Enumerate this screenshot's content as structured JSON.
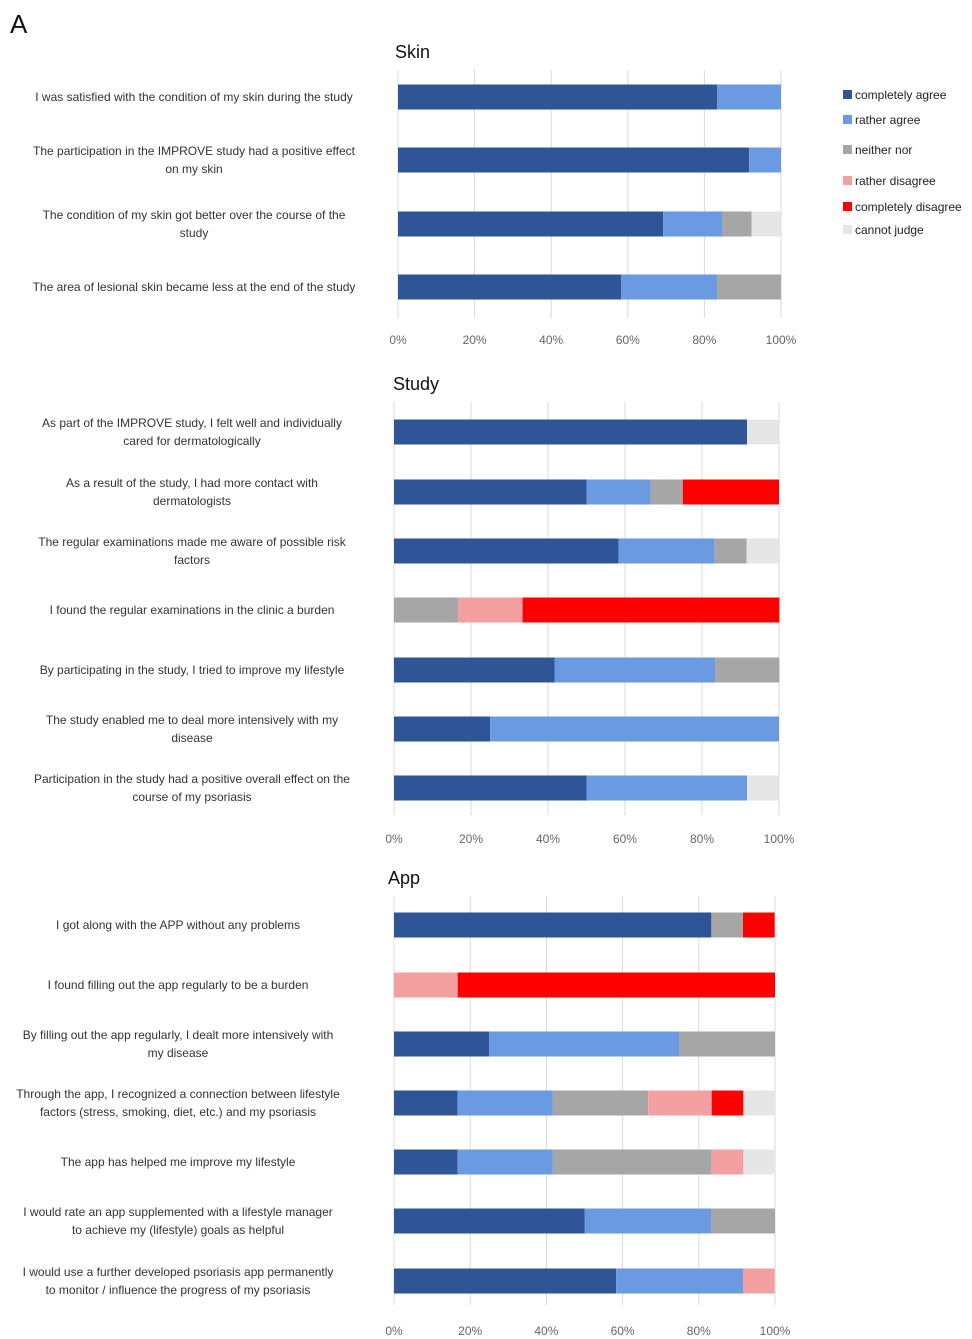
{
  "panel_label": "A",
  "legend": [
    {
      "key": "completely_agree",
      "label": "completely agree",
      "color": "#2f5597"
    },
    {
      "key": "rather_agree",
      "label": "rather agree",
      "color": "#6a9ae2"
    },
    {
      "key": "neither_nor",
      "label": "neither nor",
      "color": "#a6a6a6"
    },
    {
      "key": "rather_disagree",
      "label": "rather disagree",
      "color": "#f4a0a0"
    },
    {
      "key": "completely_disagree",
      "label": "completely disagree",
      "color": "#ff0000"
    },
    {
      "key": "cannot_judge",
      "label": "cannot judge",
      "color": "#e6e6e6"
    }
  ],
  "chart_data": [
    {
      "type": "bar",
      "orientation": "horizontal",
      "stacked": "percent",
      "title": "Skin",
      "xlim": [
        0,
        100
      ],
      "xticks": [
        "0%",
        "20%",
        "40%",
        "60%",
        "80%",
        "100%"
      ],
      "categories": [
        [
          "I was satisfied with the condition of my skin during the study"
        ],
        [
          "The participation in the IMPROVE study had a positive effect",
          "on my skin"
        ],
        [
          "The condition of my skin got better over the course of the",
          "study"
        ],
        [
          "The area of lesional skin became less at the end of the study"
        ]
      ],
      "series": [
        {
          "name": "completely agree",
          "values": [
            83.3,
            91.7,
            69.2,
            58.3
          ]
        },
        {
          "name": "rather agree",
          "values": [
            16.7,
            8.3,
            15.4,
            25.0
          ]
        },
        {
          "name": "neither nor",
          "values": [
            0,
            0,
            7.7,
            16.7
          ]
        },
        {
          "name": "rather disagree",
          "values": [
            0,
            0,
            0,
            0
          ]
        },
        {
          "name": "completely disagree",
          "values": [
            0,
            0,
            0,
            0
          ]
        },
        {
          "name": "cannot judge",
          "values": [
            0,
            0,
            7.7,
            0
          ]
        }
      ]
    },
    {
      "type": "bar",
      "orientation": "horizontal",
      "stacked": "percent",
      "title": "Study",
      "xlim": [
        0,
        100
      ],
      "xticks": [
        "0%",
        "20%",
        "40%",
        "60%",
        "80%",
        "100%"
      ],
      "categories": [
        [
          "As part of the IMPROVE study, I felt well and individually",
          "cared for dermatologically"
        ],
        [
          "As a result of the study, I had more contact with",
          "dermatologists"
        ],
        [
          "The regular examinations made me aware of possible risk",
          "factors"
        ],
        [
          "I found the regular examinations in the clinic a burden"
        ],
        [
          "By participating in the study, I tried to improve my lifestyle"
        ],
        [
          "The study enabled me to deal more intensively with my",
          "disease"
        ],
        [
          "Participation in the study had a positive overall effect on the",
          "course of my psoriasis"
        ]
      ],
      "series": [
        {
          "name": "completely agree",
          "values": [
            91.7,
            50.0,
            58.3,
            0,
            41.7,
            25.0,
            50.0
          ]
        },
        {
          "name": "rather agree",
          "values": [
            0,
            16.7,
            25.0,
            0,
            41.7,
            75.0,
            41.7
          ]
        },
        {
          "name": "neither nor",
          "values": [
            0,
            8.3,
            8.3,
            16.7,
            16.7,
            0,
            0
          ]
        },
        {
          "name": "rather disagree",
          "values": [
            0,
            0,
            0,
            16.7,
            0,
            0,
            0
          ]
        },
        {
          "name": "completely disagree",
          "values": [
            0,
            25.0,
            0,
            66.7,
            0,
            0,
            0
          ]
        },
        {
          "name": "cannot judge",
          "values": [
            8.3,
            0,
            8.3,
            0,
            0,
            0,
            8.3
          ]
        }
      ]
    },
    {
      "type": "bar",
      "orientation": "horizontal",
      "stacked": "percent",
      "title": "App",
      "xlim": [
        0,
        100
      ],
      "xticks": [
        "0%",
        "20%",
        "40%",
        "60%",
        "80%",
        "100%"
      ],
      "categories": [
        [
          "I got along with the APP without any problems"
        ],
        [
          "I found filling out the app regularly to be a burden"
        ],
        [
          "By filling out the app regularly, I dealt more intensively with",
          "my disease"
        ],
        [
          "Through the app, I recognized a connection between lifestyle",
          "factors (stress, smoking, diet, etc.) and my psoriasis"
        ],
        [
          "The app has helped me improve my lifestyle"
        ],
        [
          "I would rate an app supplemented with a lifestyle manager",
          "to achieve my (lifestyle) goals as helpful"
        ],
        [
          "I would use a further developed psoriasis app permanently",
          "to monitor / influence the progress of my psoriasis"
        ]
      ],
      "series": [
        {
          "name": "completely agree",
          "values": [
            83.3,
            0,
            25.0,
            16.7,
            16.7,
            50.0,
            58.3
          ]
        },
        {
          "name": "rather agree",
          "values": [
            0,
            0,
            50.0,
            25.0,
            25.0,
            33.3,
            33.3
          ]
        },
        {
          "name": "neither nor",
          "values": [
            8.3,
            0,
            25.0,
            25.0,
            41.7,
            16.7,
            0
          ]
        },
        {
          "name": "rather disagree",
          "values": [
            0,
            16.7,
            0,
            16.7,
            8.3,
            0,
            8.3
          ]
        },
        {
          "name": "completely disagree",
          "values": [
            8.3,
            83.3,
            0,
            8.3,
            0,
            0,
            0
          ]
        },
        {
          "name": "cannot judge",
          "values": [
            0,
            0,
            0,
            8.3,
            8.3,
            0,
            0
          ]
        }
      ]
    }
  ]
}
